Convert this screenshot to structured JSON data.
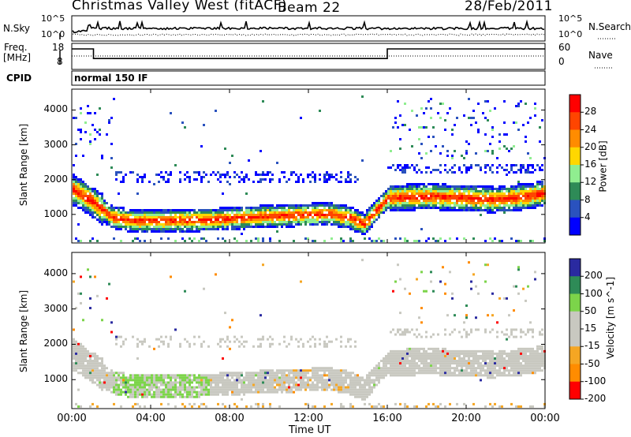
{
  "header": {
    "station_title": "Christmas Valley West (fitACF)",
    "beam_label": "Beam 22",
    "date": "28/Feb/2011"
  },
  "top_panels": {
    "nsky_label": "N.Sky",
    "nsky_ticks": [
      "10^5",
      "10^0"
    ],
    "nsearch_label": "N.Search",
    "freq_label_1": "Freq.",
    "freq_label_2": "[MHz]",
    "freq_ticks": [
      "18",
      "8"
    ],
    "nave_ticks": [
      "60",
      "0"
    ],
    "nave_label": "Nave",
    "cpid_label": "CPID",
    "cpid_value": "normal 150 IF"
  },
  "x_axis": {
    "label": "Time UT",
    "ticks": [
      "00:00",
      "04:00",
      "08:00",
      "12:00",
      "16:00",
      "20:00",
      "00:00"
    ]
  },
  "colors": {
    "power": [
      "#0000ff",
      "#2a52be",
      "#2e8b57",
      "#90ee90",
      "#ffd700",
      "#ff8c00",
      "#ff4500",
      "#ff0000"
    ],
    "velocity": [
      "#2a2aa0",
      "#2e8b57",
      "#7cd44a",
      "#c8c8c0",
      "#c8c8c0",
      "#f5a623",
      "#ff8c00",
      "#ff0000"
    ]
  },
  "chart_data": [
    {
      "type": "line",
      "panel": "noise",
      "series": [
        {
          "name": "N.Sky",
          "style": "solid"
        },
        {
          "name": "N.Search",
          "style": "dotted"
        }
      ],
      "ticks": [
        "10^5",
        "10^0"
      ]
    },
    {
      "type": "line",
      "panel": "frequency",
      "x_hours": [
        0,
        1.1,
        1.1,
        16.0,
        16.0,
        24
      ],
      "freq_mhz": [
        16.5,
        16.5,
        12.0,
        12.0,
        16.5,
        16.5
      ],
      "nave": [
        14,
        14,
        14,
        14,
        14,
        14
      ],
      "y_ticks_freq": [
        18,
        8
      ],
      "y_ticks_nave": [
        60,
        0
      ]
    },
    {
      "type": "heatmap",
      "panel": "power",
      "xlim_hours": [
        0,
        24
      ],
      "ylim_km": [
        180,
        4600
      ],
      "y_ticks": [
        1000,
        2000,
        3000,
        4000
      ],
      "ylabel": "Slant Range [km]",
      "colorbar_label": "Power [dB]",
      "colorbar_ticks": [
        4,
        8,
        12,
        16,
        20,
        24,
        28
      ],
      "main_echo_band": {
        "hours": [
          0,
          1,
          2,
          3,
          5,
          7,
          9,
          11,
          13,
          14,
          14.8,
          15.4,
          16,
          18,
          20,
          21.5,
          23,
          24
        ],
        "range_km": [
          1750,
          1400,
          950,
          850,
          850,
          880,
          950,
          1000,
          1050,
          950,
          750,
          1150,
          1500,
          1550,
          1500,
          1450,
          1550,
          1650
        ]
      }
    },
    {
      "type": "heatmap",
      "panel": "velocity",
      "xlim_hours": [
        0,
        24
      ],
      "ylim_km": [
        180,
        4600
      ],
      "y_ticks": [
        1000,
        2000,
        3000,
        4000
      ],
      "ylabel": "Slant Range [km]",
      "colorbar_label": "Velocity [m s^-1]",
      "colorbar_ticks": [
        200,
        100,
        50,
        15,
        -15,
        -50,
        -100,
        -200
      ]
    }
  ]
}
